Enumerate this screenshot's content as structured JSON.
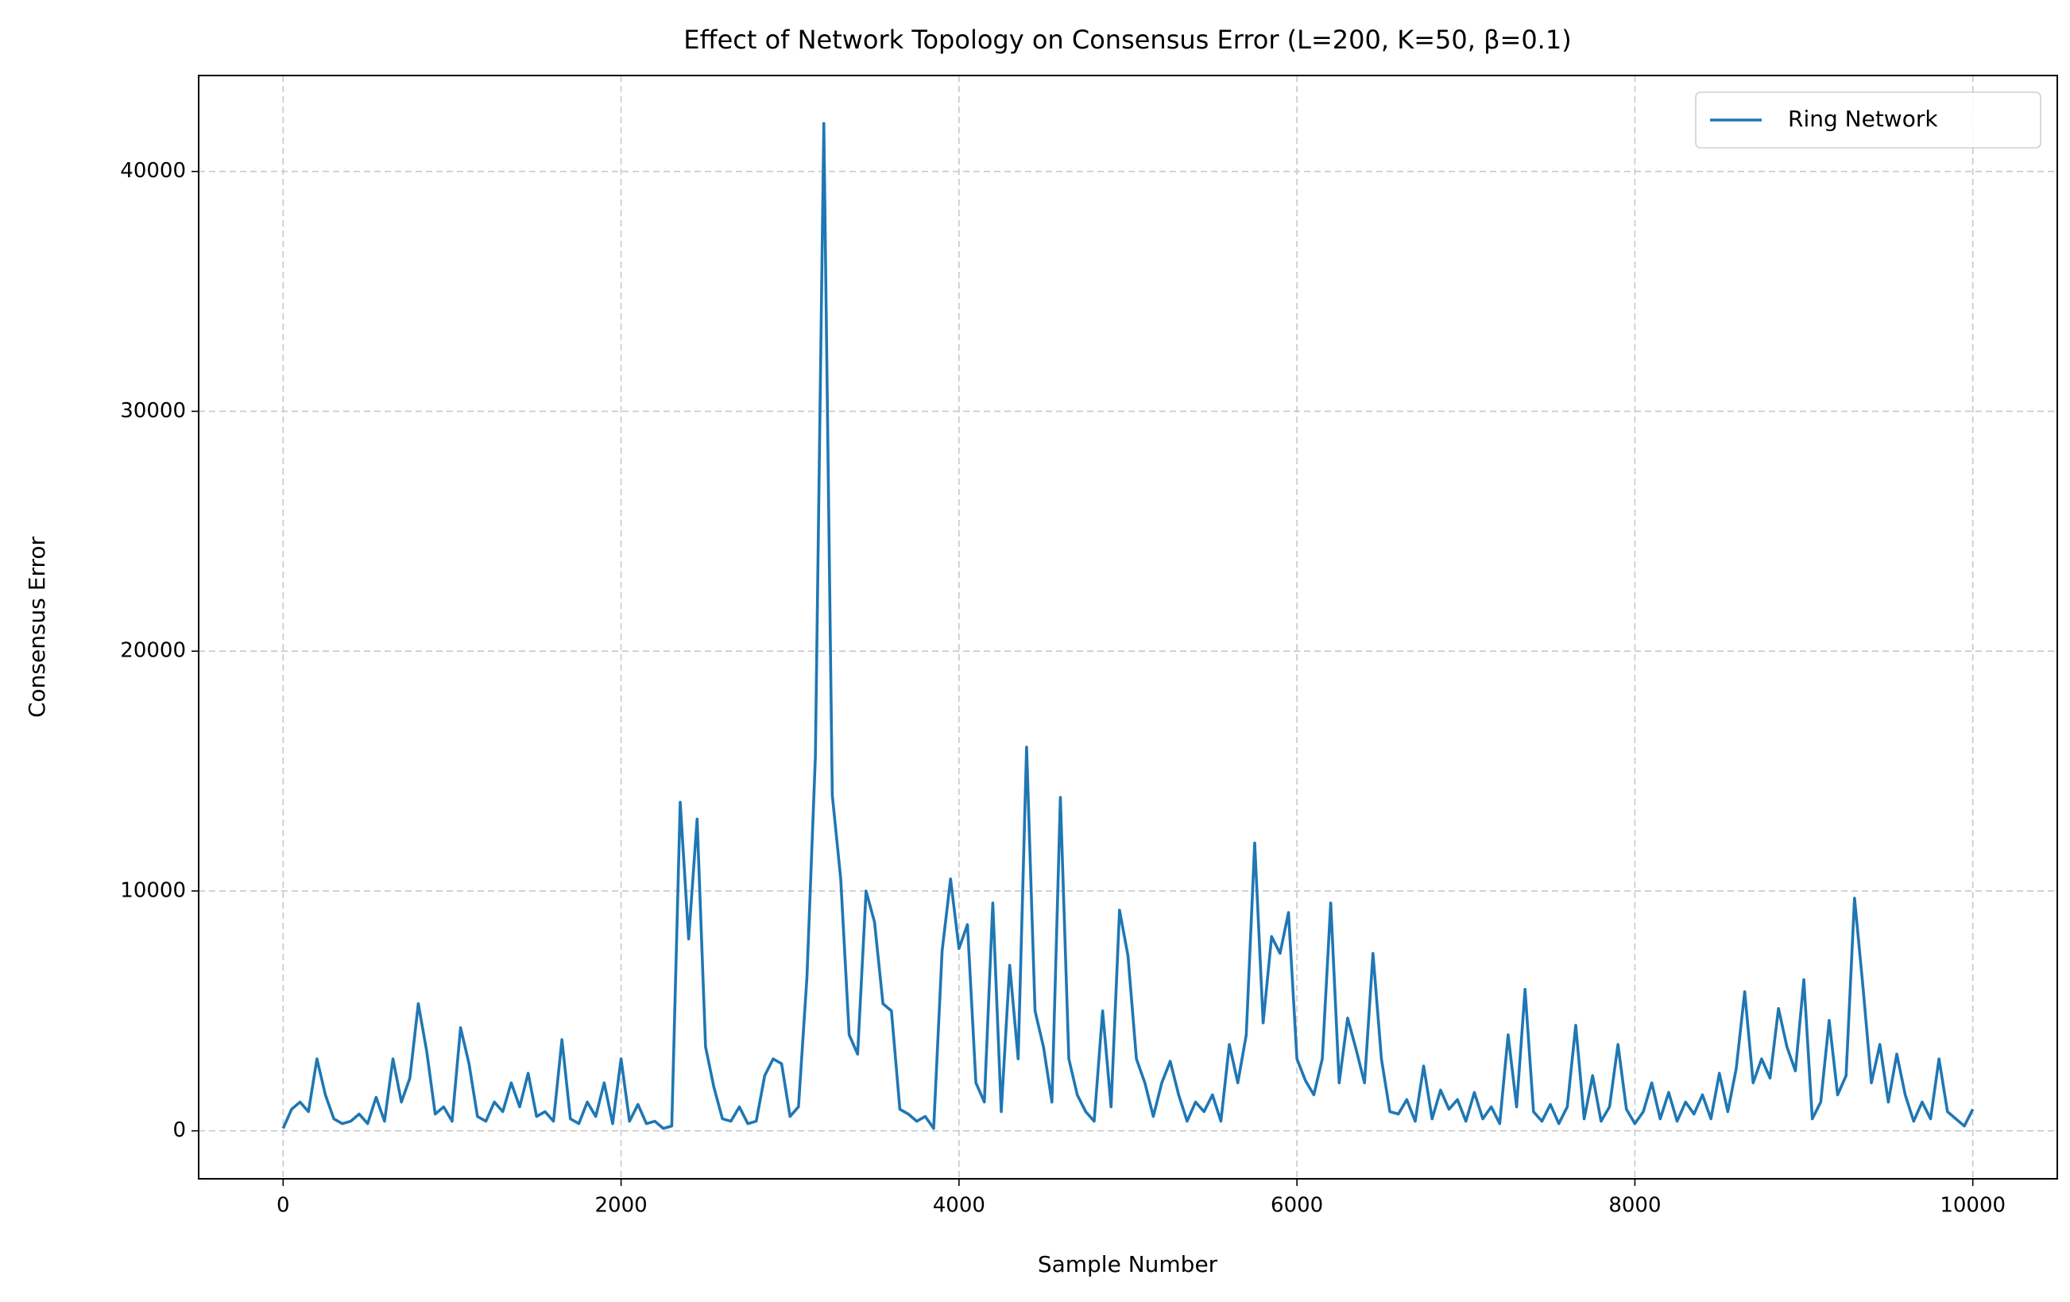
{
  "chart_data": {
    "type": "line",
    "title": "Effect of Network Topology on Consensus Error (L=200, K=50, β=0.1)",
    "x_label": "Sample Number",
    "y_label": "Consensus Error",
    "xlim": [
      -500,
      10500
    ],
    "xticks": [
      0,
      2000,
      4000,
      6000,
      8000,
      10000
    ],
    "ylim": [
      -2000,
      44000
    ],
    "yticks": [
      0,
      10000,
      20000,
      30000,
      40000
    ],
    "grid": true,
    "legend": "upper right",
    "x": [
      0,
      50,
      100,
      150,
      200,
      250,
      300,
      350,
      400,
      450,
      500,
      550,
      600,
      650,
      700,
      750,
      800,
      850,
      900,
      950,
      1000,
      1050,
      1100,
      1150,
      1200,
      1250,
      1300,
      1350,
      1400,
      1450,
      1500,
      1550,
      1600,
      1650,
      1700,
      1750,
      1800,
      1850,
      1900,
      1950,
      2000,
      2050,
      2100,
      2150,
      2200,
      2250,
      2300,
      2350,
      2400,
      2450,
      2500,
      2550,
      2600,
      2650,
      2700,
      2750,
      2800,
      2850,
      2900,
      2950,
      3000,
      3050,
      3100,
      3150,
      3200,
      3250,
      3300,
      3350,
      3400,
      3450,
      3500,
      3550,
      3600,
      3650,
      3700,
      3750,
      3800,
      3850,
      3900,
      3950,
      4000,
      4050,
      4100,
      4150,
      4200,
      4250,
      4300,
      4350,
      4400,
      4450,
      4500,
      4550,
      4600,
      4650,
      4700,
      4750,
      4800,
      4850,
      4900,
      4950,
      5000,
      5050,
      5100,
      5150,
      5200,
      5250,
      5300,
      5350,
      5400,
      5450,
      5500,
      5550,
      5600,
      5650,
      5700,
      5750,
      5800,
      5850,
      5900,
      5950,
      6000,
      6050,
      6100,
      6150,
      6200,
      6250,
      6300,
      6350,
      6400,
      6450,
      6500,
      6550,
      6600,
      6650,
      6700,
      6750,
      6800,
      6850,
      6900,
      6950,
      7000,
      7050,
      7100,
      7150,
      7200,
      7250,
      7300,
      7350,
      7400,
      7450,
      7500,
      7550,
      7600,
      7650,
      7700,
      7750,
      7800,
      7850,
      7900,
      7950,
      8000,
      8050,
      8100,
      8150,
      8200,
      8250,
      8300,
      8350,
      8400,
      8450,
      8500,
      8550,
      8600,
      8650,
      8700,
      8750,
      8800,
      8850,
      8900,
      8950,
      9000,
      9050,
      9100,
      9150,
      9200,
      9250,
      9300,
      9350,
      9400,
      9450,
      9500,
      9550,
      9600,
      9650,
      9700,
      9750,
      9800,
      9850,
      9900,
      9950,
      10000
    ],
    "series": [
      {
        "name": "Ring Network",
        "color": "#1f77b4",
        "values": [
          100,
          900,
          1200,
          800,
          3000,
          1500,
          500,
          300,
          400,
          700,
          300,
          1400,
          400,
          3000,
          1200,
          2200,
          5300,
          3300,
          700,
          1000,
          400,
          4300,
          2800,
          600,
          400,
          1200,
          800,
          2000,
          1000,
          2400,
          600,
          800,
          400,
          3800,
          500,
          300,
          1200,
          600,
          2000,
          300,
          3000,
          400,
          1100,
          300,
          400,
          100,
          200,
          13700,
          8000,
          13000,
          3500,
          1800,
          500,
          400,
          1000,
          300,
          400,
          2300,
          3000,
          2800,
          600,
          1000,
          6400,
          15600,
          42000,
          14000,
          10500,
          4000,
          3200,
          10000,
          8700,
          5300,
          5000,
          900,
          700,
          400,
          600,
          100,
          7500,
          10500,
          7600,
          8600,
          2000,
          1200,
          9500,
          800,
          6900,
          3000,
          16000,
          5000,
          3500,
          1200,
          13900,
          3000,
          1500,
          800,
          400,
          5000,
          1000,
          9200,
          7300,
          3000,
          2000,
          600,
          2000,
          2900,
          1500,
          400,
          1200,
          800,
          1500,
          400,
          3600,
          2000,
          4000,
          12000,
          4500,
          8100,
          7400,
          9100,
          3000,
          2100,
          1500,
          3000,
          9500,
          2000,
          4700,
          3400,
          2000,
          7400,
          3000,
          800,
          700,
          1300,
          400,
          2700,
          500,
          1700,
          900,
          1300,
          400,
          1600,
          500,
          1000,
          300,
          4000,
          1000,
          5900,
          800,
          400,
          1100,
          300,
          1000,
          4400,
          500,
          2300,
          400,
          1000,
          3600,
          900,
          300,
          800,
          2000,
          500,
          1600,
          400,
          1200,
          700,
          1500,
          500,
          2400,
          800,
          2600,
          5800,
          2000,
          3000,
          2200,
          5100,
          3500,
          2500,
          6300,
          500,
          1200,
          4600,
          1500,
          2300,
          9700,
          6000,
          2000,
          3600,
          1200,
          3200,
          1500,
          400,
          1200,
          500,
          3000,
          800,
          500,
          200,
          900
        ]
      }
    ]
  }
}
